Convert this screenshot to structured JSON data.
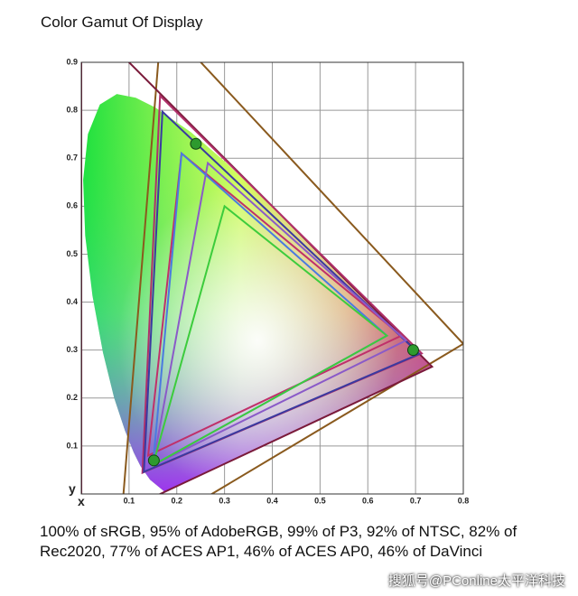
{
  "chart_data": {
    "type": "gamut",
    "title": "Color Gamut Of Display",
    "xlabel": "x",
    "ylabel": "y",
    "xlim": [
      0,
      0.8
    ],
    "ylim": [
      0,
      0.9
    ],
    "xticks": [
      0.1,
      0.2,
      0.3,
      0.4,
      0.5,
      0.6,
      0.7,
      0.8
    ],
    "yticks": [
      0.1,
      0.2,
      0.3,
      0.4,
      0.5,
      0.6,
      0.7,
      0.8,
      0.9
    ],
    "grid": true,
    "locus": {
      "x": [
        0.1741,
        0.144,
        0.1241,
        0.1096,
        0.0913,
        0.0687,
        0.0454,
        0.0235,
        0.0082,
        0.0039,
        0.0139,
        0.0389,
        0.0743,
        0.1142,
        0.1547,
        0.2296,
        0.3016,
        0.3731,
        0.4441,
        0.5125,
        0.5752,
        0.627,
        0.6915,
        0.7347
      ],
      "y": [
        0.005,
        0.0297,
        0.0578,
        0.0868,
        0.1327,
        0.2007,
        0.295,
        0.4127,
        0.5384,
        0.6548,
        0.7502,
        0.812,
        0.8338,
        0.8262,
        0.8059,
        0.7543,
        0.6923,
        0.6245,
        0.5547,
        0.4866,
        0.4242,
        0.3725,
        0.3083,
        0.2653
      ]
    },
    "series": [
      {
        "color": "#8a5a1e",
        "x": [
          0.8,
          0.1682,
          0.079
        ],
        "y": [
          0.313,
          0.9877,
          -0.1155
        ]
      },
      {
        "color": "#7a1a3a",
        "x": [
          0.7347,
          0.0,
          0.0001
        ],
        "y": [
          0.2653,
          1.0,
          -0.077
        ]
      },
      {
        "color": "#b0306a",
        "x": [
          0.713,
          0.165,
          0.128
        ],
        "y": [
          0.293,
          0.83,
          0.044
        ]
      },
      {
        "color": "#3a3aa0",
        "x": [
          0.708,
          0.17,
          0.131
        ],
        "y": [
          0.292,
          0.797,
          0.046
        ]
      },
      {
        "color": "#c0306a",
        "x": [
          0.67,
          0.21,
          0.14
        ],
        "y": [
          0.33,
          0.71,
          0.08
        ]
      },
      {
        "color": "#8a5ac8",
        "x": [
          0.68,
          0.265,
          0.15
        ],
        "y": [
          0.32,
          0.69,
          0.06
        ]
      },
      {
        "color": "#4a7ae0",
        "x": [
          0.64,
          0.21,
          0.15
        ],
        "y": [
          0.33,
          0.71,
          0.06
        ]
      },
      {
        "color": "#3ccc3c",
        "x": [
          0.64,
          0.3,
          0.15
        ],
        "y": [
          0.33,
          0.6,
          0.06
        ]
      }
    ],
    "markers": {
      "color": "#2e9a2e",
      "x": [
        0.24,
        0.695,
        0.152
      ],
      "y": [
        0.73,
        0.3,
        0.07
      ]
    },
    "caption": "100% of sRGB, 95% of AdobeRGB, 99% of P3, 92% of NTSC, 82% of Rec2020, 77% of ACES AP1, 46% of ACES AP0, 46% of DaVinci",
    "watermark": "搜狐号@PConline太平洋科技"
  }
}
